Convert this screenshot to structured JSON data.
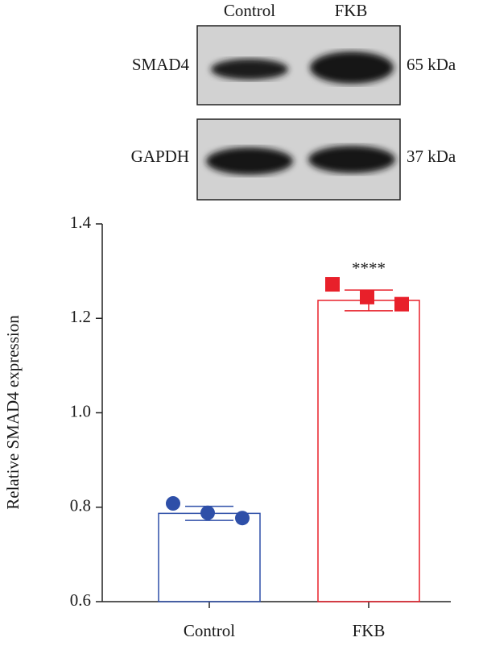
{
  "blot": {
    "columns": [
      "Control",
      "FKB"
    ],
    "rows": [
      {
        "label": "SMAD4",
        "size": "65 kDa"
      },
      {
        "label": "GAPDH",
        "size": "37 kDa"
      }
    ]
  },
  "chart_data": {
    "type": "bar",
    "ylabel": "Relative SMAD4 expression",
    "categories": [
      "Control",
      "FKB"
    ],
    "values": [
      0.787,
      1.238
    ],
    "errors": [
      0.015,
      0.022
    ],
    "points": [
      [
        0.808,
        0.788,
        0.777
      ],
      [
        1.272,
        1.245,
        1.23
      ]
    ],
    "colors": [
      "#2e4fa8",
      "#e8202a"
    ],
    "markers": [
      "circle",
      "square"
    ],
    "annotation": "****",
    "ylim": [
      0.6,
      1.4
    ],
    "yticks": [
      0.6,
      0.8,
      {
        "value": 1,
        "label": "1.0"
      },
      1.2,
      1.4
    ]
  }
}
